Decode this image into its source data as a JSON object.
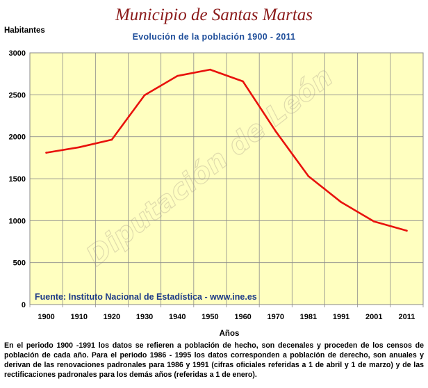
{
  "chart_data": {
    "type": "line",
    "title": "Municipio de Santas Martas",
    "subtitle": "Evolución de la población 1900 - 2011",
    "ylabel": "Habitantes",
    "xlabel": "Años",
    "categories": [
      "1900",
      "1910",
      "1920",
      "1930",
      "1940",
      "1950",
      "1960",
      "1970",
      "1981",
      "1991",
      "2001",
      "2011"
    ],
    "series": [
      {
        "values": [
          1810,
          1875,
          1965,
          2495,
          2725,
          2800,
          2660,
          2065,
          1530,
          1220,
          990,
          880
        ]
      }
    ],
    "ylim": [
      0,
      3000
    ],
    "yticks": [
      0,
      500,
      1000,
      1500,
      2000,
      2500,
      3000
    ],
    "grid": true,
    "line_color": "#e8120c",
    "plot_background": "#ffffc0",
    "source_note": "Fuente: Instituto Nacional de Estadística - www.ine.es",
    "watermark": "Diputación de León",
    "footnote": "En el periodo 1900 -1991 los datos se refieren a población de hecho, son decenales y proceden de los censos de  población de cada año.  Para el periodo  1986 - 1995 los datos corresponden a población de derecho, son anuales y derivan de las renovaciones padronales para 1986 y 1991 (cifras oficiales referidas a 1 de abril y 1 de marzo) y de las rectificaciones padronales para los demás años (referidas a 1 de enero)."
  }
}
